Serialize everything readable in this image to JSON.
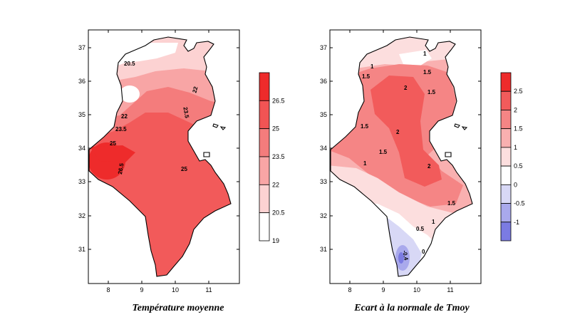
{
  "maps": [
    {
      "caption": "Température moyenne",
      "x_ticks": [
        "8",
        "9",
        "10",
        "11"
      ],
      "y_ticks": [
        "37",
        "36",
        "35",
        "34",
        "33",
        "32",
        "31"
      ],
      "contour_labels": [
        "20.5",
        "22",
        "22",
        "23.5",
        "23.5",
        "25",
        "25",
        "26.5"
      ],
      "legend": {
        "labels": [
          "26.5",
          "25",
          "23.5",
          "22",
          "20.5",
          "19"
        ],
        "colors": [
          "#ee2b2b",
          "#f15454",
          "#f47c7c",
          "#f8a5a5",
          "#fcd2d2",
          "#ffffff"
        ]
      }
    },
    {
      "caption": "Ecart à la normale de Tmoy",
      "x_ticks": [
        "8",
        "9",
        "10",
        "11"
      ],
      "y_ticks": [
        "37",
        "36",
        "35",
        "34",
        "33",
        "32",
        "31"
      ],
      "contour_labels": [
        "1",
        "1",
        "1.5",
        "1.5",
        "2",
        "1.5",
        "1.5",
        "1.5",
        "2",
        "1",
        "2",
        "1.5",
        "1",
        "0.5",
        "-0.4",
        "0"
      ],
      "legend": {
        "labels": [
          "2.5",
          "2",
          "1.5",
          "1",
          "0.5",
          "0",
          "-0.5",
          "-1"
        ],
        "colors": [
          "#ee2b2b",
          "#f25b5b",
          "#f58585",
          "#f9b0b0",
          "#fcdede",
          "#ffffff",
          "#d8d8f6",
          "#a9a9ec",
          "#7b7be2"
        ]
      }
    }
  ]
}
